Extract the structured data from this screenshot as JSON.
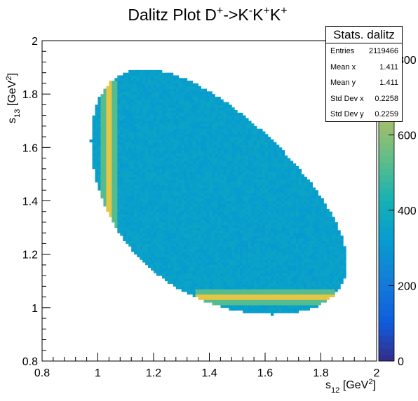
{
  "chart_data": {
    "type": "heatmap",
    "title_parts": [
      "Dalitz Plot D",
      "+",
      "->K",
      "-",
      "K",
      "+",
      "K",
      "+"
    ],
    "xlabel_parts": [
      "s",
      "12",
      " [GeV",
      "2",
      "]"
    ],
    "ylabel_parts": [
      "s",
      "13",
      " [GeV",
      "2",
      "]"
    ],
    "xlim": [
      0.8,
      2.0
    ],
    "ylim": [
      0.8,
      2.0
    ],
    "x_ticks": [
      "0.8",
      "1",
      "1.2",
      "1.4",
      "1.6",
      "1.8",
      "2"
    ],
    "y_ticks": [
      "0.8",
      "1",
      "1.2",
      "1.4",
      "1.6",
      "1.8",
      "2"
    ],
    "z_range": [
      0,
      850
    ],
    "z_ticks": [
      "0",
      "200",
      "400",
      "600",
      "800"
    ],
    "colormap": "parula",
    "regions": [
      {
        "name": "kinematic-interior",
        "density": 340
      },
      {
        "name": "vertical-band-s12-1.04",
        "density": 760,
        "s12": 1.04,
        "s13_range": [
          1.06,
          1.85
        ]
      },
      {
        "name": "horizontal-band-s13-1.04",
        "density": 760,
        "s13": 1.04,
        "s12_range": [
          1.35,
          1.85
        ]
      }
    ],
    "grid": false,
    "legend": "stats-box-top-right"
  },
  "stats": {
    "title": "Stats. dalitz",
    "rows": [
      {
        "label": "Entries",
        "value": "2119466"
      },
      {
        "label": "Mean x",
        "value": "1.411"
      },
      {
        "label": "Mean y",
        "value": "1.411"
      },
      {
        "label": "Std Dev x",
        "value": "0.2258"
      },
      {
        "label": "Std Dev y",
        "value": "0.2259"
      }
    ]
  }
}
